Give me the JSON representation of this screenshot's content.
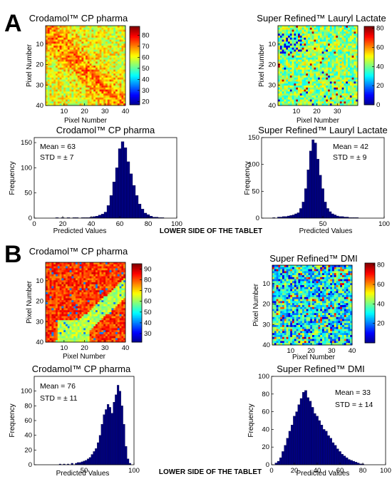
{
  "panels": [
    {
      "letter": "A",
      "caption": "LOWER SIDE OF THE TABLET"
    },
    {
      "letter": "B",
      "caption": "LOWER SIDE OF THE TABLET"
    }
  ],
  "colormap": [
    "#00008f",
    "#0000ff",
    "#007fff",
    "#00ffff",
    "#7fff7f",
    "#ffff00",
    "#ff7f00",
    "#ff0000",
    "#7f0000"
  ],
  "chart_data": [
    {
      "type": "heatmap",
      "title": "Crodamol™ CP pharma",
      "xlabel": "Pixel Number",
      "ylabel": "Pixel Number",
      "xticks": [
        10,
        20,
        30,
        40
      ],
      "yticks": [
        10,
        20,
        30,
        40
      ],
      "xlim": [
        1,
        40
      ],
      "ylim": [
        1,
        40
      ],
      "colorbar_ticks": [
        20,
        30,
        40,
        50,
        60,
        70,
        80
      ],
      "colorbar_range": [
        17,
        88
      ],
      "pattern": "diag",
      "mean": 63,
      "std": 7
    },
    {
      "type": "heatmap",
      "title": "Super Refined™ Lauryl Lactate",
      "xlabel": "Pixel Number",
      "ylabel": "Pixel Number",
      "xticks": [
        10,
        20,
        30
      ],
      "yticks": [
        10,
        20,
        30,
        40
      ],
      "xlim": [
        1,
        40
      ],
      "ylim": [
        1,
        40
      ],
      "colorbar_ticks": [
        0,
        20,
        40,
        60,
        80
      ],
      "colorbar_range": [
        0,
        82
      ],
      "pattern": "speckle",
      "mean": 42,
      "std": 9
    },
    {
      "type": "bar",
      "title": "Crodamol™ CP pharma",
      "xlabel": "Predicted Values",
      "ylabel": "Frequency",
      "xlim": [
        0,
        100
      ],
      "ylim": [
        0,
        160
      ],
      "xticks": [
        0,
        20,
        40,
        60,
        80,
        100
      ],
      "yticks": [
        0,
        50,
        100,
        150
      ],
      "annotations": [
        "Mean = 63",
        "STD = ± 7"
      ],
      "annotation_pos": "top-left",
      "bins": [
        16,
        18,
        20,
        22,
        24,
        26,
        28,
        30,
        32,
        34,
        36,
        38,
        40,
        42,
        44,
        46,
        48,
        50,
        52,
        54,
        56,
        58,
        60,
        62,
        64,
        66,
        68,
        70,
        72,
        74,
        76,
        78,
        80,
        82,
        84,
        86,
        88,
        90
      ],
      "values": [
        1,
        0,
        1,
        0,
        1,
        0,
        1,
        1,
        0,
        1,
        1,
        1,
        2,
        3,
        4,
        6,
        8,
        12,
        25,
        45,
        72,
        100,
        138,
        152,
        140,
        112,
        88,
        65,
        45,
        28,
        18,
        10,
        7,
        4,
        2,
        2,
        1,
        1
      ]
    },
    {
      "type": "bar",
      "title": "Super Refined™ Lauryl Lactate",
      "xlabel": "Predicted Values",
      "ylabel": "Frequency",
      "xlim": [
        0,
        100
      ],
      "ylim": [
        0,
        150
      ],
      "xticks": [
        50,
        100
      ],
      "yticks": [
        0,
        50,
        100,
        150
      ],
      "annotations": [
        "Mean = 42",
        "STD = ± 9"
      ],
      "annotation_pos": "top-right",
      "bins": [
        10,
        12,
        14,
        16,
        18,
        20,
        22,
        24,
        26,
        28,
        30,
        32,
        34,
        36,
        38,
        40,
        42,
        44,
        46,
        48,
        50,
        52,
        54,
        56,
        58,
        60,
        62,
        64,
        66,
        68,
        70,
        72,
        74,
        76,
        78
      ],
      "values": [
        1,
        0,
        2,
        2,
        3,
        3,
        4,
        5,
        6,
        8,
        10,
        18,
        30,
        55,
        90,
        125,
        146,
        140,
        110,
        80,
        55,
        30,
        18,
        12,
        8,
        6,
        4,
        3,
        3,
        2,
        2,
        1,
        1,
        1,
        1
      ]
    },
    {
      "type": "heatmap",
      "title": "Crodamol™ CP pharma",
      "xlabel": "Pixel Number",
      "ylabel": "Pixel Number",
      "xticks": [
        10,
        20,
        30,
        40
      ],
      "yticks": [
        10,
        20,
        30,
        40
      ],
      "xlim": [
        1,
        40
      ],
      "ylim": [
        1,
        40
      ],
      "colorbar_ticks": [
        30,
        40,
        50,
        60,
        70,
        80,
        90
      ],
      "colorbar_range": [
        22,
        95
      ],
      "pattern": "yellowband",
      "mean": 76,
      "std": 11
    },
    {
      "type": "heatmap",
      "title": "Super Refined™ DMI",
      "xlabel": "Pixel Number",
      "ylabel": "Pixel Number",
      "xticks": [
        10,
        20,
        30,
        40
      ],
      "yticks": [
        10,
        20,
        30,
        40
      ],
      "xlim": [
        1,
        40
      ],
      "ylim": [
        1,
        40
      ],
      "colorbar_ticks": [
        20,
        40,
        60,
        80
      ],
      "colorbar_range": [
        0,
        82
      ],
      "pattern": "bluespeckle",
      "mean": 33,
      "std": 14
    },
    {
      "type": "bar",
      "title": "Crodamol™ CP pharma",
      "xlabel": "Predicted Values",
      "ylabel": "Frequency",
      "xlim": [
        0,
        100
      ],
      "ylim": [
        0,
        120
      ],
      "xticks": [
        50,
        100
      ],
      "yticks": [
        0,
        20,
        40,
        60,
        80,
        100
      ],
      "annotations": [
        "Mean = 76",
        "STD = ± 11"
      ],
      "annotation_pos": "top-left",
      "bins": [
        26,
        30,
        34,
        38,
        42,
        44,
        46,
        48,
        50,
        52,
        54,
        56,
        58,
        60,
        62,
        64,
        66,
        68,
        70,
        72,
        74,
        76,
        78,
        80,
        82,
        84,
        86,
        88,
        90,
        92,
        94,
        96
      ],
      "values": [
        1,
        1,
        1,
        2,
        2,
        3,
        3,
        4,
        5,
        6,
        8,
        10,
        14,
        18,
        22,
        30,
        40,
        55,
        68,
        75,
        82,
        78,
        70,
        85,
        95,
        108,
        100,
        80,
        55,
        25,
        8,
        2
      ]
    },
    {
      "type": "bar",
      "title": "Super Refined™ DMI",
      "xlabel": "Predicted Values",
      "ylabel": "Frequency",
      "xlim": [
        0,
        100
      ],
      "ylim": [
        0,
        100
      ],
      "xticks": [
        0,
        20,
        40,
        60,
        80,
        100
      ],
      "yticks": [
        0,
        20,
        40,
        60,
        80,
        100
      ],
      "annotations": [
        "Mean = 33",
        "STD = ± 14"
      ],
      "annotation_pos": "top-right",
      "bins": [
        4,
        6,
        8,
        10,
        12,
        14,
        16,
        18,
        20,
        22,
        24,
        26,
        28,
        30,
        32,
        34,
        36,
        38,
        40,
        42,
        44,
        46,
        48,
        50,
        52,
        54,
        56,
        58,
        60,
        62,
        64,
        66,
        68,
        70,
        72,
        74,
        76,
        78,
        80
      ],
      "values": [
        2,
        4,
        8,
        15,
        22,
        30,
        38,
        45,
        55,
        60,
        68,
        75,
        82,
        84,
        76,
        72,
        65,
        58,
        55,
        50,
        45,
        40,
        38,
        33,
        30,
        25,
        22,
        18,
        15,
        12,
        10,
        8,
        6,
        5,
        4,
        3,
        2,
        1,
        1
      ]
    }
  ]
}
